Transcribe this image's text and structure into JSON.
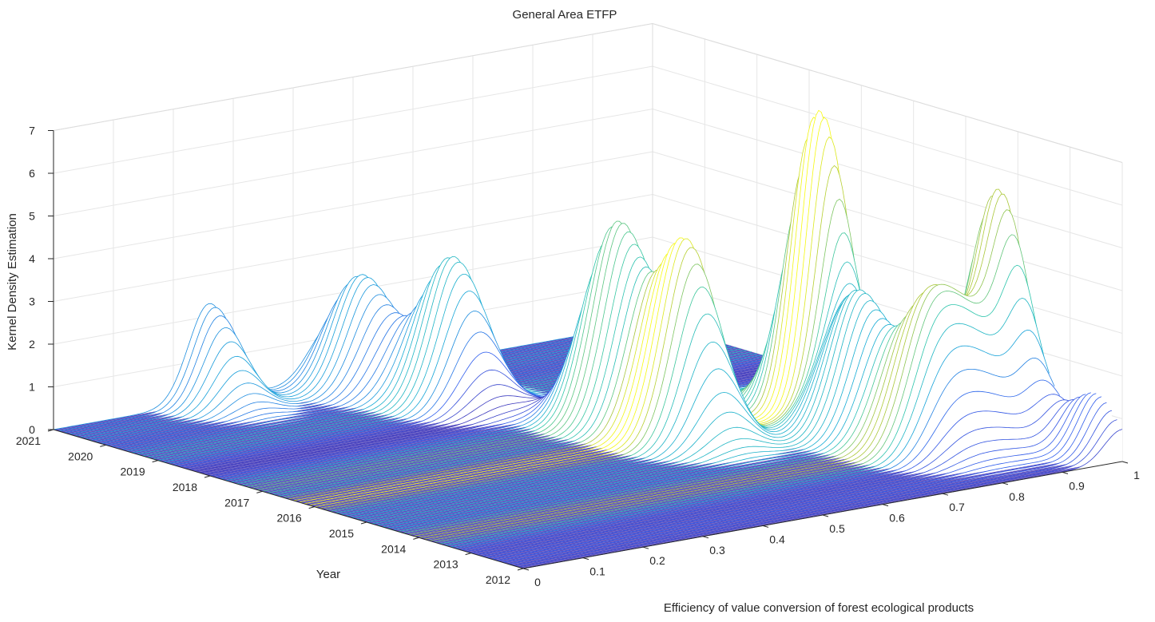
{
  "chart_data": {
    "type": "surface3d",
    "title": "General Area ETFP",
    "xlabel": "Efficiency of value conversion of forest ecological products",
    "ylabel": "Year",
    "zlabel": "Kernel Density Estimation",
    "x_ticks": [
      "0",
      "0.1",
      "0.2",
      "0.3",
      "0.4",
      "0.5",
      "0.6",
      "0.7",
      "0.8",
      "0.9",
      "1"
    ],
    "y_ticks": [
      "2012",
      "2013",
      "2014",
      "2015",
      "2016",
      "2017",
      "2018",
      "2019",
      "2020",
      "2021"
    ],
    "z_ticks": [
      "0",
      "1",
      "2",
      "3",
      "4",
      "5",
      "6",
      "7"
    ],
    "xlim": [
      0,
      1
    ],
    "ylim": [
      2012,
      2021
    ],
    "zlim": [
      0,
      7
    ],
    "grid": true,
    "colormap": "parula",
    "mesh_color_low": "#3b2fb5",
    "surface_fill": "#ffffff",
    "peaks": [
      {
        "x": 0.26,
        "year": 2021,
        "z": 2.3,
        "width": 0.035
      },
      {
        "x": 0.47,
        "year": 2020.5,
        "z": 2.6,
        "width": 0.04
      },
      {
        "x": 0.51,
        "year": 2019.2,
        "z": 3.4,
        "width": 0.04
      },
      {
        "x": 0.61,
        "year": 2017.2,
        "z": 4.6,
        "width": 0.04
      },
      {
        "x": 0.62,
        "year": 2016.0,
        "z": 4.6,
        "width": 0.04
      },
      {
        "x": 0.86,
        "year": 2016.2,
        "z": 7.0,
        "width": 0.03
      },
      {
        "x": 0.82,
        "year": 2015.0,
        "z": 3.2,
        "width": 0.04
      },
      {
        "x": 0.83,
        "year": 2013.8,
        "z": 3.0,
        "width": 0.04
      },
      {
        "x": 0.9,
        "year": 2013.8,
        "z": 2.5,
        "width": 0.04
      },
      {
        "x": 0.97,
        "year": 2014.0,
        "z": 5.2,
        "width": 0.03
      },
      {
        "x": 1.0,
        "year": 2012.5,
        "z": 1.4,
        "width": 0.03
      }
    ]
  }
}
